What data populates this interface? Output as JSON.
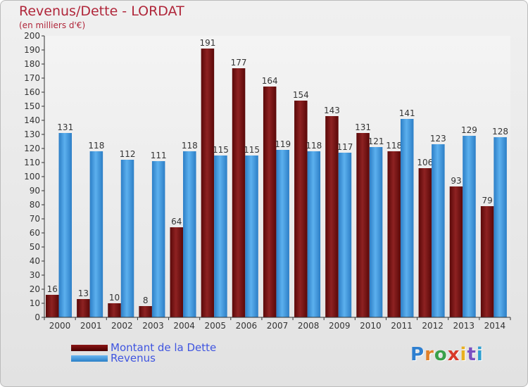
{
  "title": "Revenus/Dette - LORDAT",
  "subtitle": "(en milliers d'€)",
  "brand": "Proxiti",
  "chart_data": {
    "type": "bar",
    "categories": [
      "2000",
      "2001",
      "2002",
      "2003",
      "2004",
      "2005",
      "2006",
      "2007",
      "2008",
      "2009",
      "2010",
      "2011",
      "2012",
      "2013",
      "2014"
    ],
    "series": [
      {
        "name": "Montant de la Dette",
        "color": "#7a1212",
        "values": [
          16,
          13,
          10,
          8,
          64,
          191,
          177,
          164,
          154,
          143,
          131,
          118,
          106,
          93,
          79
        ]
      },
      {
        "name": "Revenus",
        "color": "#3d94de",
        "values": [
          131,
          118,
          112,
          111,
          118,
          115,
          115,
          119,
          118,
          117,
          121,
          141,
          123,
          129,
          128
        ]
      }
    ],
    "ylim": [
      0,
      200
    ],
    "yticks": [
      0,
      10,
      20,
      30,
      40,
      50,
      60,
      70,
      80,
      90,
      100,
      110,
      120,
      130,
      140,
      150,
      160,
      170,
      180,
      190,
      200
    ],
    "grid": false,
    "legend_position": "bottom-left"
  }
}
